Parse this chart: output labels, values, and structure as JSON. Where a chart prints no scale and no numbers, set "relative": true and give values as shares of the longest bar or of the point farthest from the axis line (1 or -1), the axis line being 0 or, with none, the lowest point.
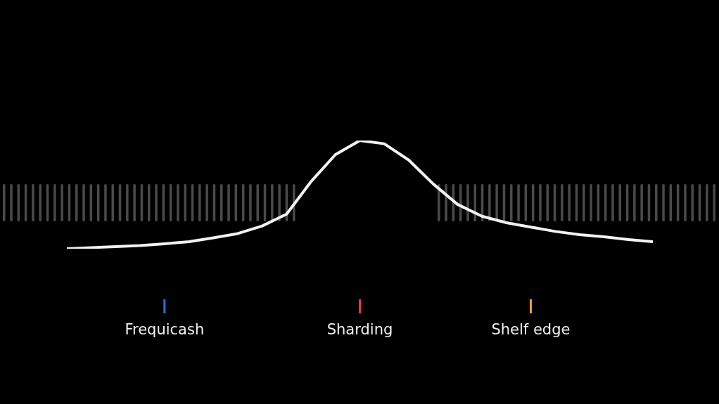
{
  "chart_data": {
    "type": "line",
    "relative": true,
    "categories": [
      null,
      null,
      null,
      null,
      "Frequicash",
      null,
      null,
      null,
      null,
      null,
      null,
      null,
      "Sharding",
      null,
      null,
      null,
      null,
      null,
      null,
      "Shelf edge",
      null,
      null,
      null,
      null,
      null
    ],
    "series": [
      {
        "color": "#f2f2f2",
        "values": [
          0,
          0.01,
          0.02,
          0.03,
          0.045,
          0.065,
          0.1,
          0.14,
          0.21,
          0.32,
          0.62,
          0.87,
          1,
          0.97,
          0.82,
          0.6,
          0.41,
          0.3,
          0.24,
          0.2,
          0.16,
          0.13,
          0.11,
          0.085,
          0.065
        ]
      }
    ],
    "tick_labels": "x",
    "marker": "none",
    "line_style": "solid"
  }
}
